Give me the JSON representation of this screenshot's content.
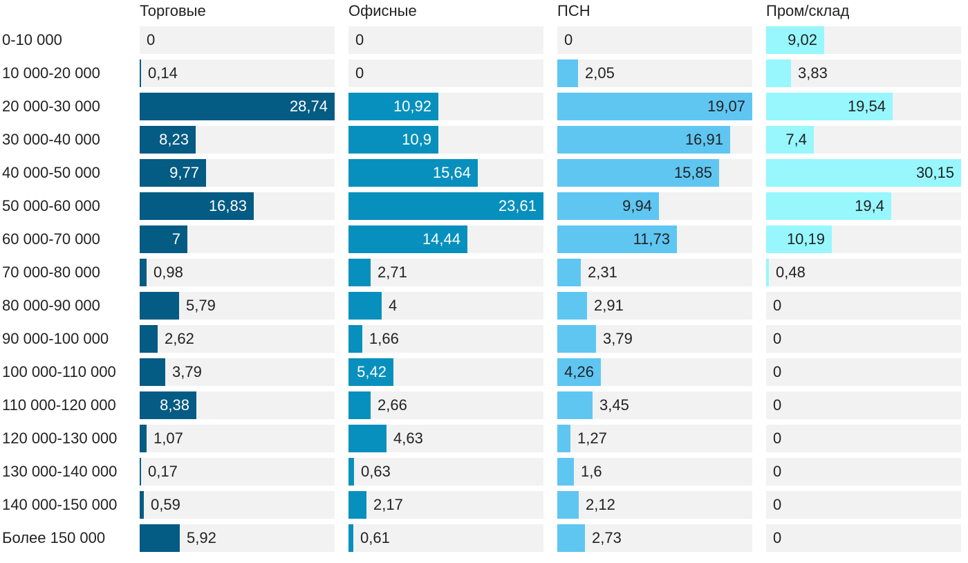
{
  "chart_data": {
    "type": "bar",
    "orientation": "horizontal",
    "layout": "small-multiples",
    "categories": [
      "0-10 000",
      "10 000-20 000",
      "20 000-30 000",
      "30 000-40 000",
      "40 000-50 000",
      "50 000-60 000",
      "60 000-70 000",
      "70 000-80 000",
      "80 000-90 000",
      "90 000-100 000",
      "100 000-110 000",
      "110 000-120 000",
      "120 000-130 000",
      "130 000-140 000",
      "140 000-150 000",
      "Более 150 000"
    ],
    "series": [
      {
        "name": "Торговые",
        "color": "#045b83",
        "label_color_inside": "#ffffff",
        "values": [
          0,
          0.14,
          28.74,
          8.23,
          9.77,
          16.83,
          7,
          0.98,
          5.79,
          2.62,
          3.79,
          8.38,
          1.07,
          0.17,
          0.59,
          5.92
        ],
        "labels": [
          "0",
          "0,14",
          "28,74",
          "8,23",
          "9,77",
          "16,83",
          "7",
          "0,98",
          "5,79",
          "2,62",
          "3,79",
          "8,38",
          "1,07",
          "0,17",
          "0,59",
          "5,92"
        ]
      },
      {
        "name": "Офисные",
        "color": "#0790bd",
        "label_color_inside": "#ffffff",
        "values": [
          0,
          0,
          10.92,
          10.9,
          15.64,
          23.61,
          14.44,
          2.71,
          4,
          1.66,
          5.42,
          2.66,
          4.63,
          0.63,
          2.17,
          0.61
        ],
        "labels": [
          "0",
          "0",
          "10,92",
          "10,9",
          "15,64",
          "23,61",
          "14,44",
          "2,71",
          "4",
          "1,66",
          "5,42",
          "2,66",
          "4,63",
          "0,63",
          "2,17",
          "0,61"
        ]
      },
      {
        "name": "ПСН",
        "color": "#5fc6f2",
        "label_color_inside": "#222222",
        "values": [
          0,
          2.05,
          19.07,
          16.91,
          15.85,
          9.94,
          11.73,
          2.31,
          2.91,
          3.79,
          4.26,
          3.45,
          1.27,
          1.6,
          2.12,
          2.73
        ],
        "labels": [
          "0",
          "2,05",
          "19,07",
          "16,91",
          "15,85",
          "9,94",
          "11,73",
          "2,31",
          "2,91",
          "3,79",
          "4,26",
          "3,45",
          "1,27",
          "1,6",
          "2,12",
          "2,73"
        ]
      },
      {
        "name": "Пром/склад",
        "color": "#97f7fd",
        "label_color_inside": "#222222",
        "values": [
          9.02,
          3.83,
          19.54,
          7.4,
          30.15,
          19.4,
          10.19,
          0.48,
          0,
          0,
          0,
          0,
          0,
          0,
          0,
          0
        ],
        "labels": [
          "9,02",
          "3,83",
          "19,54",
          "7,4",
          "30,15",
          "19,4",
          "10,19",
          "0,48",
          "0",
          "0",
          "0",
          "0",
          "0",
          "0",
          "0",
          "0"
        ]
      }
    ],
    "title": "",
    "xlabel": "",
    "ylabel": ""
  }
}
